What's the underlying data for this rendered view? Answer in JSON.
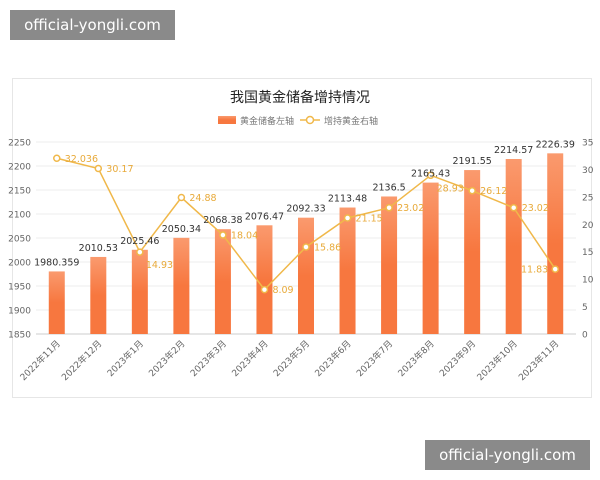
{
  "watermarks": [
    "official-yongli.com",
    "official-yongli.com"
  ],
  "chart_data": {
    "type": "bar+line",
    "title": "我国黄金储备增持情况",
    "legend_position": "top-center",
    "grid": true,
    "categories": [
      "2022年11月",
      "2022年12月",
      "2023年1月",
      "2023年2月",
      "2023年3月",
      "2023年4月",
      "2023年5月",
      "2023年6月",
      "2023年7月",
      "2023年8月",
      "2023年9月",
      "2023年10月",
      "2023年11月"
    ],
    "series": [
      {
        "name": "黄金储备左轴",
        "type": "bar",
        "axis": "left",
        "color": "#f77a45",
        "values": [
          1980.359,
          2010.53,
          2025.46,
          2050.34,
          2068.38,
          2076.47,
          2092.33,
          2113.48,
          2136.5,
          2165.43,
          2191.55,
          2214.57,
          2226.39
        ],
        "labels": [
          "1980.359",
          "2010.53",
          "2025.46",
          "2050.34",
          "2068.38",
          "2076.47",
          "2092.33",
          "2113.48",
          "2136.5",
          "2165.43",
          "2191.55",
          "2214.57",
          "2226.39"
        ]
      },
      {
        "name": "增持黄金右轴",
        "type": "line",
        "axis": "right",
        "color": "#f0b84a",
        "values": [
          32.036,
          30.17,
          14.93,
          24.88,
          18.04,
          8.09,
          15.86,
          21.15,
          23.02,
          28.93,
          26.12,
          23.02,
          11.83
        ],
        "labels": [
          "32.036",
          "30.17",
          "14.93",
          "24.88",
          "18.04",
          "8.09",
          "15.86",
          "21.15",
          "23.02",
          "28.93",
          "26.12",
          "23.02",
          "11.83"
        ]
      }
    ],
    "y_left": {
      "lim": [
        1850,
        2250
      ],
      "ticks": [
        "1850",
        "1900",
        "1950",
        "2000",
        "2050",
        "2100",
        "2150",
        "2200",
        "2250"
      ]
    },
    "y_right": {
      "lim": [
        0,
        35
      ],
      "ticks": [
        "0",
        "5",
        "10",
        "15",
        "20",
        "25",
        "30",
        "35"
      ]
    }
  }
}
